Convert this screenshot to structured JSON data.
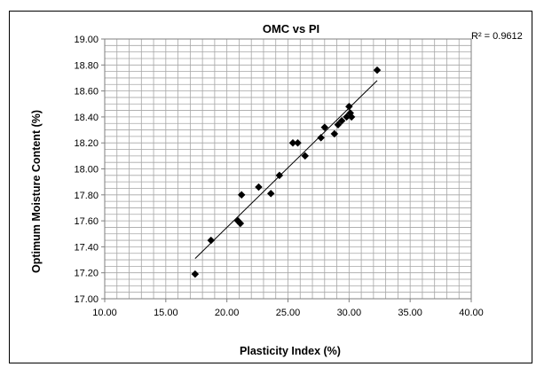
{
  "chart_data": {
    "type": "scatter",
    "title": "OMC vs PI",
    "xlabel": "Plasticity Index (%)",
    "ylabel": "Optimum Moisture Content (%)",
    "annotation": "R² = 0.9612",
    "xlim": [
      10,
      40
    ],
    "ylim": [
      17,
      19
    ],
    "x_ticks": [
      "10.00",
      "15.00",
      "20.00",
      "25.00",
      "30.00",
      "35.00",
      "40.00"
    ],
    "y_ticks": [
      "17.00",
      "17.20",
      "17.40",
      "17.60",
      "17.80",
      "18.00",
      "18.20",
      "18.40",
      "18.60",
      "18.80",
      "19.00"
    ],
    "grid": true,
    "legend": "none",
    "marker_color": "#000000",
    "series": [
      {
        "marker": "diamond",
        "points": [
          {
            "x": 17.4,
            "y": 17.19
          },
          {
            "x": 18.7,
            "y": 17.45
          },
          {
            "x": 20.9,
            "y": 17.6
          },
          {
            "x": 21.1,
            "y": 17.58
          },
          {
            "x": 21.2,
            "y": 17.8
          },
          {
            "x": 22.6,
            "y": 17.86
          },
          {
            "x": 23.6,
            "y": 17.81
          },
          {
            "x": 24.3,
            "y": 17.95
          },
          {
            "x": 25.4,
            "y": 18.2
          },
          {
            "x": 25.8,
            "y": 18.2
          },
          {
            "x": 26.4,
            "y": 18.1
          },
          {
            "x": 27.7,
            "y": 18.24
          },
          {
            "x": 28.0,
            "y": 18.32
          },
          {
            "x": 28.8,
            "y": 18.27
          },
          {
            "x": 29.1,
            "y": 18.34
          },
          {
            "x": 29.4,
            "y": 18.37
          },
          {
            "x": 29.8,
            "y": 18.4
          },
          {
            "x": 30.0,
            "y": 18.48
          },
          {
            "x": 30.1,
            "y": 18.43
          },
          {
            "x": 30.2,
            "y": 18.4
          },
          {
            "x": 32.3,
            "y": 18.76
          }
        ]
      }
    ],
    "trendline": {
      "type": "linear",
      "x_range": [
        17.4,
        32.3
      ],
      "y_range": [
        17.31,
        18.68
      ]
    }
  }
}
